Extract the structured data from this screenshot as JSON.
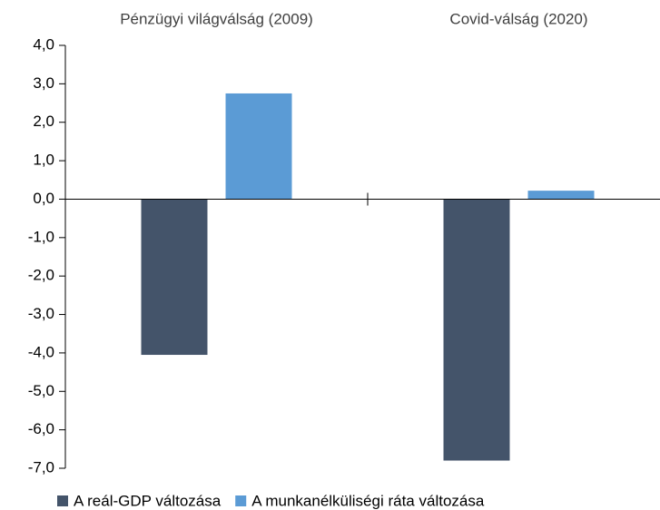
{
  "chart_data": {
    "type": "bar",
    "categories": [
      "Pénzügyi világválság (2009)",
      "Covid-válság (2020)"
    ],
    "series": [
      {
        "name": "A reál-GDP változása",
        "color": "#44546a",
        "values": [
          -4.05,
          -6.8
        ]
      },
      {
        "name": "A munkanélküliségi ráta változása",
        "color": "#5b9bd5",
        "values": [
          2.75,
          0.22
        ]
      }
    ],
    "ylim": [
      -7,
      4
    ],
    "yticks": [
      {
        "value": 4,
        "label": "4,0"
      },
      {
        "value": 3,
        "label": "3,0"
      },
      {
        "value": 2,
        "label": "2,0"
      },
      {
        "value": 1,
        "label": "1,0"
      },
      {
        "value": 0,
        "label": "0,0"
      },
      {
        "value": -1,
        "label": "-1,0"
      },
      {
        "value": -2,
        "label": "-2,0"
      },
      {
        "value": -3,
        "label": "-3,0"
      },
      {
        "value": -4,
        "label": "-4,0"
      },
      {
        "value": -5,
        "label": "-5,0"
      },
      {
        "value": -6,
        "label": "-6,0"
      },
      {
        "value": -7,
        "label": "-7,0"
      }
    ],
    "grid": false
  }
}
